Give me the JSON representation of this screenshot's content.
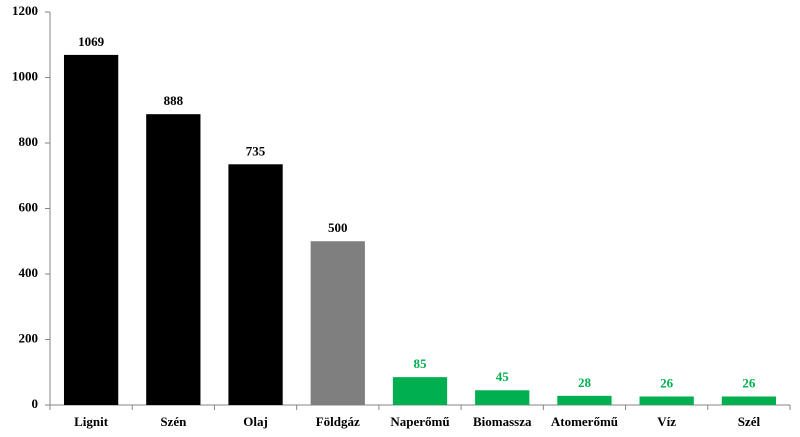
{
  "chart_data": {
    "type": "bar",
    "categories": [
      "Lignit",
      "Szén",
      "Olaj",
      "Földgáz",
      "Naperőmű",
      "Biomassza",
      "Atomerőmű",
      "Víz",
      "Szél"
    ],
    "values": [
      1069,
      888,
      735,
      500,
      85,
      45,
      28,
      26,
      26
    ],
    "colors": [
      "#000000",
      "#000000",
      "#000000",
      "#7f7f7f",
      "#00b050",
      "#00b050",
      "#00b050",
      "#00b050",
      "#00b050"
    ],
    "value_label_colors": [
      "#000000",
      "#000000",
      "#000000",
      "#000000",
      "#00b050",
      "#00b050",
      "#00b050",
      "#00b050",
      "#00b050"
    ],
    "ylim": [
      0,
      1200
    ],
    "yticks": [
      0,
      200,
      400,
      600,
      800,
      1000,
      1200
    ],
    "grid": false
  }
}
